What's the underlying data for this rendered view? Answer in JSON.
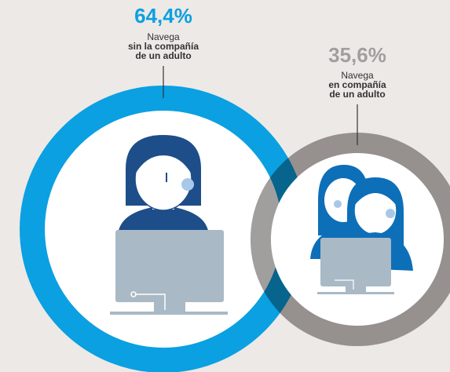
{
  "chart_data": {
    "type": "bubble",
    "values": [
      64.4,
      35.6
    ],
    "value_labels": [
      "64,4%",
      "35,6%"
    ],
    "labels": [
      [
        "Navega",
        "sin la compañía",
        "de un adulto"
      ],
      [
        "Navega",
        "en compañía",
        "de un adulto"
      ]
    ],
    "colors": [
      "#0aa0e2",
      "#a19f9e"
    ]
  }
}
